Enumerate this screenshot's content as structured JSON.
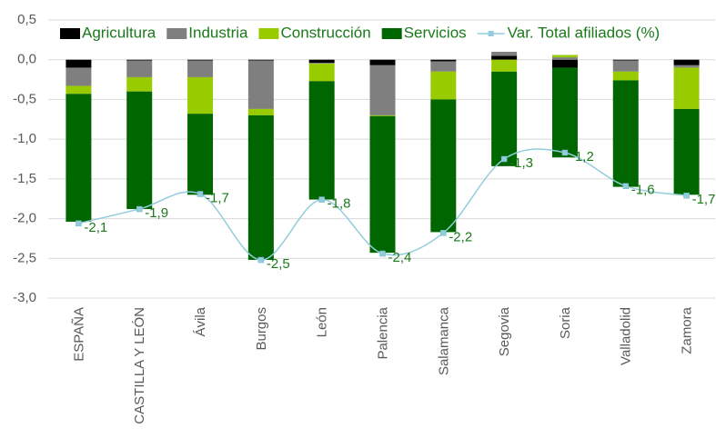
{
  "chart_data": {
    "type": "bar",
    "categories": [
      "ESPAÑA",
      "CASTILLA Y LEÓN",
      "Ávila",
      "Burgos",
      "León",
      "Palencia",
      "Salamanca",
      "Segovia",
      "Soria",
      "Valladolid",
      "Zamora"
    ],
    "series": [
      {
        "name": "Agricultura",
        "color": "#000000",
        "values": [
          -0.1,
          -0.01,
          -0.01,
          -0.01,
          -0.04,
          -0.07,
          -0.02,
          0.05,
          -0.1,
          -0.01,
          -0.07
        ]
      },
      {
        "name": "Industria",
        "color": "#7f7f7f",
        "values": [
          -0.23,
          -0.21,
          -0.21,
          -0.61,
          -0.01,
          -0.63,
          -0.13,
          0.05,
          0.03,
          -0.14,
          -0.03
        ]
      },
      {
        "name": "Construcción",
        "color": "#99cc00",
        "values": [
          -0.1,
          -0.18,
          -0.46,
          -0.08,
          -0.22,
          -0.01,
          -0.35,
          -0.15,
          0.03,
          -0.11,
          -0.52
        ]
      },
      {
        "name": "Servicios",
        "color": "#006600",
        "values": [
          -1.61,
          -1.48,
          -1.02,
          -1.82,
          -1.49,
          -1.72,
          -1.67,
          -1.19,
          -1.13,
          -1.34,
          -1.08
        ]
      },
      {
        "name": "Var. Total afiliados (%)",
        "type": "line",
        "color": "#92cddc",
        "values": [
          -2.06,
          -1.88,
          -1.69,
          -2.52,
          -1.76,
          -2.44,
          -2.18,
          -1.25,
          -1.17,
          -1.59,
          -1.71
        ],
        "value_labels": [
          "-2,1",
          "-1,9",
          "-1,7",
          "-2,5",
          "-1,8",
          "-2,4",
          "-2,2",
          "-1,3",
          "-1,2",
          "-1,6",
          "-1,7"
        ]
      }
    ],
    "ylim": [
      -3.0,
      0.5
    ],
    "yticks": [
      {
        "value": 0.5,
        "label": "0,5"
      },
      {
        "value": 0,
        "label": "0,0"
      },
      {
        "value": -0.5,
        "label": "-0,5"
      },
      {
        "value": -1,
        "label": "-1,0"
      },
      {
        "value": -1.5,
        "label": "-1,5"
      },
      {
        "value": -2,
        "label": "-2,0"
      },
      {
        "value": -2.5,
        "label": "-2,5"
      },
      {
        "value": -3,
        "label": "-3,0"
      }
    ],
    "grid": true,
    "legend": "top"
  }
}
